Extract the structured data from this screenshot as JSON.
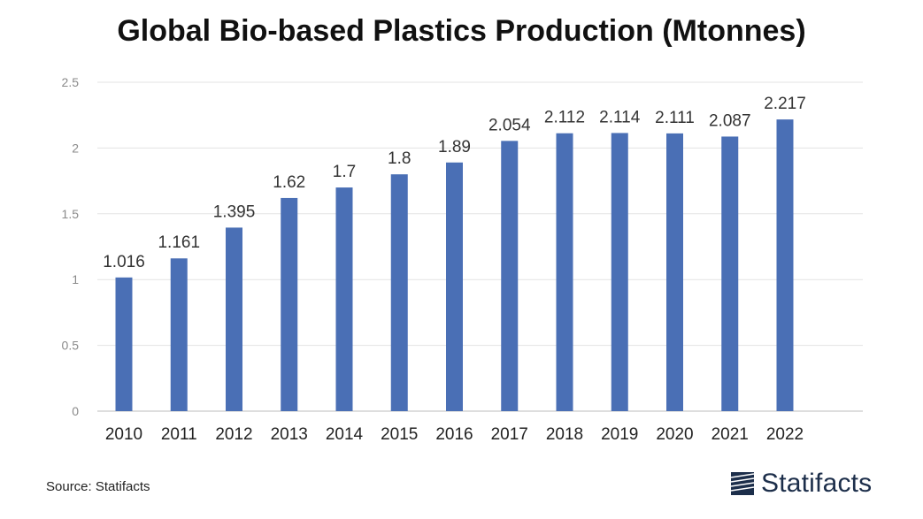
{
  "chart_data": {
    "type": "bar",
    "title": "Global Bio-based Plastics Production (Mtonnes)",
    "categories": [
      "2010",
      "2011",
      "2012",
      "2013",
      "2014",
      "2015",
      "2016",
      "2017",
      "2018",
      "2019",
      "2020",
      "2021",
      "2022"
    ],
    "values": [
      1.016,
      1.161,
      1.395,
      1.62,
      1.7,
      1.8,
      1.89,
      2.054,
      2.112,
      2.114,
      2.111,
      2.087,
      2.217
    ],
    "value_labels": [
      "1.016",
      "1.161",
      "1.395",
      "1.62",
      "1.7",
      "1.8",
      "1.89",
      "2.054",
      "2.112",
      "2.114",
      "2.111",
      "2.087",
      "2.217"
    ],
    "xlabel": "",
    "ylabel": "",
    "ylim": [
      0,
      2.5
    ],
    "yticks": [
      0,
      0.5,
      1,
      1.5,
      2,
      2.5
    ],
    "ytick_labels": [
      "0",
      "0.5",
      "1",
      "1.5",
      "2",
      "2.5"
    ],
    "grid": true,
    "bar_color": "#4a6fb5"
  },
  "footer": {
    "source": "Source: Statifacts",
    "logo_text": "Statifacts"
  },
  "logo": {
    "icon": "statifacts-logo-icon",
    "color": "#1c2e4a"
  }
}
